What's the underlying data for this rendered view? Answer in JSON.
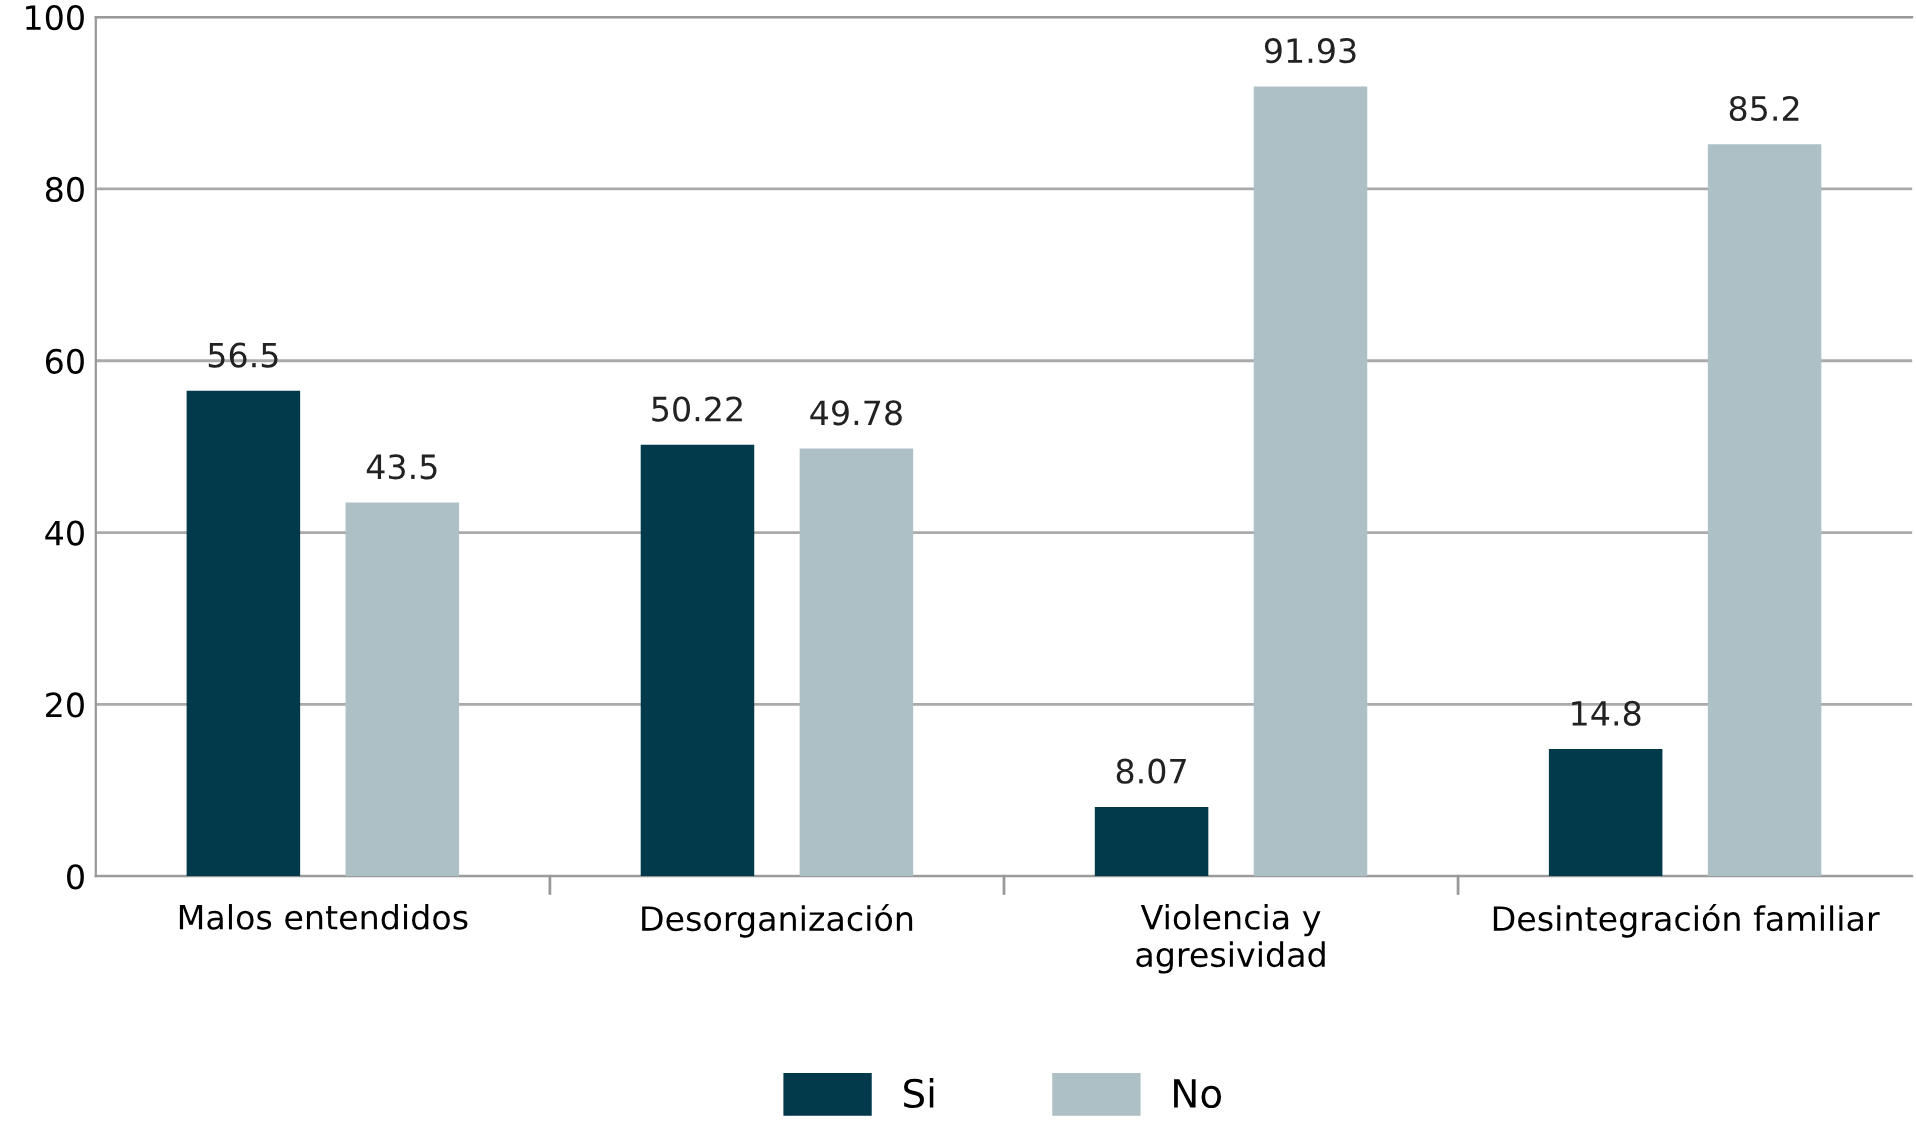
{
  "chart_data": {
    "type": "bar",
    "categories": [
      "Malos entendidos",
      "Desorganización",
      "Violencia y\nagresividad",
      "Desintegración familiar"
    ],
    "series": [
      {
        "name": "Si",
        "color": "#023a4c",
        "values": [
          56.5,
          50.22,
          8.07,
          14.8
        ]
      },
      {
        "name": "No",
        "color": "#adc0c6",
        "values": [
          43.5,
          49.78,
          91.93,
          85.2
        ]
      }
    ],
    "ylim": [
      0,
      100
    ],
    "yticks": [
      0,
      20,
      40,
      60,
      80,
      100
    ],
    "grid": "y",
    "legend": "bottom",
    "data_labels": true
  }
}
